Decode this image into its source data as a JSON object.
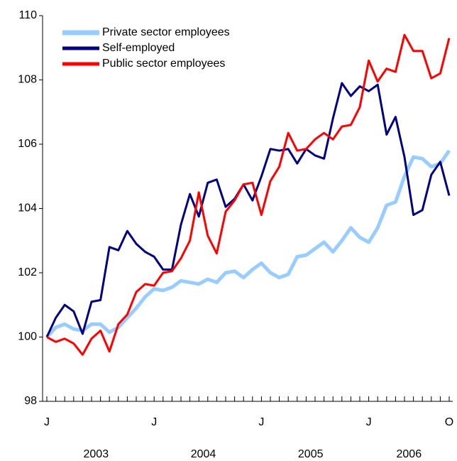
{
  "chart_data": {
    "type": "line",
    "categories": [
      "J",
      null,
      null,
      null,
      null,
      null,
      null,
      null,
      null,
      null,
      null,
      null,
      "J",
      null,
      null,
      null,
      null,
      null,
      null,
      null,
      null,
      null,
      null,
      null,
      "J",
      null,
      null,
      null,
      null,
      null,
      null,
      null,
      null,
      null,
      null,
      null,
      "J",
      null,
      null,
      null,
      null,
      null,
      null,
      null,
      null,
      "O"
    ],
    "years": [
      "2003",
      "2004",
      "2005",
      "2006"
    ],
    "series": [
      {
        "name": "Private sector employees",
        "color": "#99ccff",
        "width": 5,
        "values": [
          100,
          100.3,
          100.4,
          100.25,
          100.2,
          100.4,
          100.4,
          100.15,
          100.3,
          100.6,
          100.9,
          101.25,
          101.5,
          101.45,
          101.55,
          101.75,
          101.7,
          101.65,
          101.8,
          101.7,
          102.0,
          102.05,
          101.85,
          102.1,
          102.3,
          102.0,
          101.85,
          101.95,
          102.5,
          102.55,
          102.75,
          102.95,
          102.65,
          103.0,
          103.4,
          103.1,
          102.95,
          103.4,
          104.1,
          104.2,
          105.0,
          105.6,
          105.55,
          105.3,
          105.4,
          105.8
        ]
      },
      {
        "name": "Self-employed",
        "color": "#000080",
        "width": 3,
        "values": [
          100,
          100.6,
          101.0,
          100.8,
          100.1,
          101.1,
          101.15,
          102.8,
          102.7,
          103.3,
          102.9,
          102.65,
          102.5,
          102.1,
          102.1,
          103.5,
          104.45,
          103.75,
          104.8,
          104.9,
          104.05,
          104.3,
          104.75,
          104.25,
          105.0,
          105.85,
          105.8,
          105.85,
          105.4,
          105.85,
          105.65,
          105.55,
          106.8,
          107.9,
          107.5,
          107.8,
          107.65,
          107.85,
          106.3,
          106.85,
          105.6,
          103.8,
          103.95,
          105.05,
          105.45,
          104.4
        ]
      },
      {
        "name": "Public sector employees",
        "color": "#ff0000",
        "width": 3,
        "values": [
          100,
          99.85,
          99.95,
          99.8,
          99.45,
          99.95,
          100.2,
          99.55,
          100.4,
          100.7,
          101.4,
          101.65,
          101.6,
          102.0,
          102.05,
          102.45,
          103.0,
          104.5,
          103.15,
          102.6,
          103.9,
          104.25,
          104.75,
          104.8,
          103.8,
          104.85,
          105.3,
          106.35,
          105.8,
          105.85,
          106.15,
          106.35,
          106.15,
          106.55,
          106.6,
          107.15,
          108.6,
          107.95,
          108.35,
          108.25,
          109.4,
          108.9,
          108.9,
          108.05,
          108.2,
          109.3
        ]
      }
    ],
    "ylim": [
      98,
      110
    ],
    "yticks": [
      98,
      100,
      102,
      104,
      106,
      108,
      110
    ],
    "grid": false,
    "legend": "upper left"
  }
}
